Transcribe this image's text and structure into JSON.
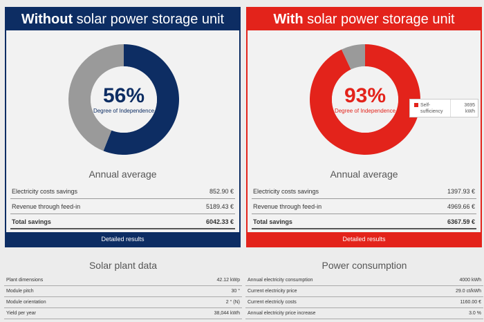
{
  "left_panel": {
    "header_bold": "Without",
    "header_rest": " solar power storage unit",
    "percent": "56%",
    "percent_label": "Degree of Independence",
    "independence_fraction": 0.56,
    "colors": {
      "accent": "#0d2d63",
      "remainder": "#9a9a9a"
    },
    "annual_title": "Annual average",
    "rows": [
      {
        "label": "Electricity costs savings",
        "value": "852.90 €"
      },
      {
        "label": "Revenue through feed-in",
        "value": "5189.43 €"
      },
      {
        "label": "Total savings",
        "value": "6042.33 €"
      }
    ],
    "button": "Detailed results"
  },
  "right_panel": {
    "header_bold": "With",
    "header_rest": " solar power storage unit",
    "percent": "93%",
    "percent_label": "Degree of Independence",
    "independence_fraction": 0.93,
    "colors": {
      "accent": "#e3231b",
      "remainder": "#9a9a9a"
    },
    "tooltip": {
      "label": "Self-sufficiency",
      "value": "3695 kWh"
    },
    "annual_title": "Annual average",
    "rows": [
      {
        "label": "Electricity costs savings",
        "value": "1397.93 €"
      },
      {
        "label": "Revenue through feed-in",
        "value": "4969.66 €"
      },
      {
        "label": "Total savings",
        "value": "6367.59 €"
      }
    ],
    "button": "Detailed results"
  },
  "solar_plant": {
    "title": "Solar plant data",
    "rows": [
      {
        "label": "Plant dimensions",
        "value": "42.12 kWp"
      },
      {
        "label": "Module pitch",
        "value": "30 °"
      },
      {
        "label": "Module orientation",
        "value": "2 ° (N)"
      },
      {
        "label": "Yield per year",
        "value": "38,044 kWh"
      }
    ]
  },
  "power_consumption": {
    "title": "Power consumption",
    "rows": [
      {
        "label": "Annual electricity consumption",
        "value": "4000 kWh"
      },
      {
        "label": "Current electricity price",
        "value": "29.0 ct/kWh"
      },
      {
        "label": "Current electricly costs",
        "value": "1160.00 €"
      },
      {
        "label": "Annual electricity price increase",
        "value": "3.0 %"
      }
    ]
  }
}
